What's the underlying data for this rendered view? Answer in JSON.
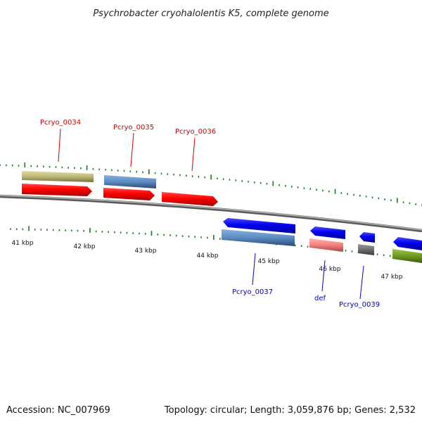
{
  "title": "Psychrobacter cryohalolentis K5, complete genome",
  "footer": {
    "accession": "Accession: NC_007969",
    "stats": "Topology: circular; Length: 3,059,876 bp; Genes: 2,532"
  },
  "colors": {
    "background": "#ffffff",
    "forward_label": "#cc0000",
    "reverse_label": "#0000bb",
    "tick": "#1b7a1b",
    "backbone": "#8c8c8c"
  },
  "scale_labels": [
    "41 kbp",
    "42 kbp",
    "43 kbp",
    "44 kbp",
    "45 kbp",
    "46 kbp",
    "47 kbp"
  ],
  "gene_labels": {
    "forward": [
      "Pcryo_0034",
      "Pcryo_0035",
      "Pcryo_0036"
    ],
    "reverse": [
      "Pcryo_0037",
      "def",
      "Pcryo_0039"
    ]
  }
}
